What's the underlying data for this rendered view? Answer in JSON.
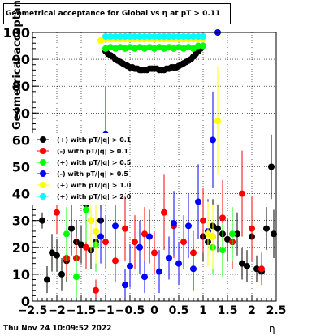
{
  "chart_data": {
    "type": "scatter",
    "title": "Geometrical acceptance for Global vs  η at pT > 0.11",
    "xlabel": "η",
    "ylabel": "Geometrical acceptance (%)",
    "xlim": [
      -2.5,
      2.5
    ],
    "ylim": [
      0,
      100
    ],
    "x_ticks": [
      "−2.5",
      "−2",
      "−1.5",
      "−1",
      "−0.5",
      "0",
      "0.5",
      "1",
      "1.5",
      "2",
      "2.5"
    ],
    "y_ticks": [
      "0",
      "10",
      "20",
      "30",
      "40",
      "50",
      "60",
      "70",
      "80",
      "90",
      "100"
    ],
    "grid": true,
    "legend_position": "center-left",
    "timestamp": "Thu Nov 24 10:09:52 2022",
    "series": [
      {
        "name": "(+) with pT/|q| > 0.1",
        "color": "#000000",
        "x": [
          -2.3,
          -2.2,
          -2.1,
          -2.0,
          -1.9,
          -1.8,
          -1.7,
          -1.6,
          -1.5,
          -1.4,
          -1.3,
          -1.2,
          -1.1,
          -1.0,
          -0.95,
          -0.9,
          -0.85,
          -0.8,
          -0.75,
          -0.7,
          -0.65,
          -0.6,
          -0.55,
          -0.5,
          -0.45,
          -0.4,
          -0.35,
          -0.3,
          -0.25,
          -0.2,
          -0.15,
          -0.1,
          -0.05,
          0.0,
          0.05,
          0.1,
          0.15,
          0.2,
          0.25,
          0.3,
          0.35,
          0.4,
          0.45,
          0.5,
          0.55,
          0.6,
          0.65,
          0.7,
          0.75,
          0.8,
          0.85,
          0.9,
          0.95,
          1.0,
          1.1,
          1.2,
          1.3,
          1.4,
          1.5,
          1.6,
          1.7,
          1.8,
          1.9,
          2.0,
          2.1,
          2.2,
          2.3,
          2.4,
          2.45
        ],
        "y": [
          30,
          8,
          18,
          17,
          10,
          15,
          27,
          22,
          21,
          36,
          19,
          22,
          30,
          93,
          92,
          91.5,
          91,
          90,
          89.5,
          89,
          88.5,
          88,
          87.5,
          87,
          87,
          86.5,
          86.5,
          86,
          86,
          86,
          86,
          86.5,
          86.5,
          86.5,
          86.5,
          86,
          86,
          86,
          86.5,
          86.5,
          87,
          87,
          87,
          87.5,
          88,
          88.5,
          89,
          89.5,
          90,
          91,
          92,
          93,
          94,
          24,
          22,
          28,
          27,
          25,
          23,
          22,
          25,
          14,
          13,
          24,
          12,
          11,
          27,
          50,
          25
        ],
        "err": [
          3,
          5,
          7,
          6,
          6,
          8,
          10,
          8,
          7,
          9,
          7,
          8,
          9,
          0.5,
          0.5,
          0.5,
          0.5,
          0.5,
          0.5,
          0.5,
          0.5,
          0.5,
          0.5,
          0.5,
          0.5,
          0.5,
          0.5,
          0.5,
          0.5,
          0.5,
          0.5,
          0.5,
          0.5,
          0.5,
          0.5,
          0.5,
          0.5,
          0.5,
          0.5,
          0.5,
          0.5,
          0.5,
          0.5,
          0.5,
          0.5,
          0.5,
          0.5,
          0.5,
          0.5,
          0.5,
          0.5,
          0.5,
          0.5,
          9,
          8,
          10,
          9,
          8,
          8,
          7,
          8,
          6,
          6,
          8,
          5,
          5,
          8,
          12,
          9
        ]
      },
      {
        "name": "(-) with pT/|q| > 0.1",
        "color": "#ff0000",
        "x": [
          -2.0,
          -1.8,
          -1.6,
          -1.4,
          -1.2,
          -1.0,
          -0.8,
          -0.6,
          -0.4,
          -0.2,
          0.0,
          0.2,
          0.4,
          0.6,
          0.8,
          1.0,
          1.2,
          1.4,
          1.6,
          1.8,
          2.0,
          2.2
        ],
        "y": [
          33,
          16,
          16,
          20,
          4,
          22,
          15,
          27,
          22,
          25,
          18,
          33,
          28,
          22,
          18,
          30,
          24,
          31,
          22,
          40,
          27,
          12
        ],
        "err": [
          8,
          7,
          8,
          8,
          4,
          10,
          8,
          12,
          10,
          10,
          8,
          14,
          12,
          10,
          8,
          12,
          10,
          14,
          10,
          16,
          12,
          6
        ]
      },
      {
        "name": "(+) with pT/|q| > 0.5",
        "color": "#00ff00",
        "x": [
          -1.8,
          -1.6,
          -1.4,
          -1.2,
          -1.0,
          -0.9,
          -0.8,
          -0.7,
          -0.6,
          -0.5,
          -0.4,
          -0.3,
          -0.2,
          -0.1,
          0.0,
          0.1,
          0.2,
          0.3,
          0.4,
          0.5,
          0.6,
          0.7,
          0.8,
          0.9,
          1.0,
          1.2,
          1.4,
          1.6
        ],
        "y": [
          25,
          9,
          34,
          21,
          94,
          94.5,
          94,
          94.5,
          94,
          94.5,
          94,
          94.5,
          94,
          94.5,
          94,
          94.5,
          94,
          94.5,
          94,
          94.5,
          94,
          94.5,
          94,
          95,
          95,
          20,
          19,
          25
        ],
        "err": [
          10,
          8,
          12,
          10,
          0.5,
          0.5,
          0.5,
          0.5,
          0.5,
          0.5,
          0.5,
          0.5,
          0.5,
          0.5,
          0.5,
          0.5,
          0.5,
          0.5,
          0.5,
          0.5,
          0.5,
          0.5,
          0.5,
          0.5,
          0.5,
          10,
          10,
          10
        ]
      },
      {
        "name": "(-) with pT/|q| > 0.5",
        "color": "#0000ff",
        "x": [
          -1.3,
          -1.1,
          -1.0,
          -0.8,
          -0.6,
          -0.5,
          -0.3,
          -0.2,
          -0.1,
          0.1,
          0.3,
          0.4,
          0.5,
          0.7,
          0.8,
          0.9,
          1.1,
          1.2,
          1.3
        ],
        "y": [
          30,
          24,
          62,
          28,
          6,
          13,
          20,
          9,
          24,
          11,
          16,
          29,
          14,
          28,
          12,
          37,
          26,
          60,
          100
        ],
        "err": [
          12,
          10,
          18,
          12,
          6,
          8,
          10,
          6,
          10,
          8,
          8,
          12,
          8,
          12,
          8,
          14,
          12,
          18,
          0.5
        ]
      },
      {
        "name": "(+) with pT/|q| > 1.0",
        "color": "#ffff00",
        "x": [
          -1.3,
          -1.2,
          -1.1,
          -1.0,
          -0.9,
          -0.8,
          -0.7,
          -0.6,
          -0.5,
          -0.4,
          -0.3,
          -0.2,
          -0.1,
          0.0,
          0.1,
          0.2,
          0.3,
          0.4,
          0.5,
          0.6,
          0.7,
          0.8,
          0.9,
          1.0,
          1.1,
          1.2,
          1.3
        ],
        "y": [
          30,
          26,
          97,
          97.5,
          97.5,
          97.5,
          97.5,
          97.5,
          97.5,
          97.5,
          97.5,
          97.5,
          97.5,
          97.5,
          97.5,
          97.5,
          97.5,
          97.5,
          97.5,
          97.5,
          97.5,
          97.5,
          97.5,
          97.5,
          25,
          24,
          67
        ],
        "err": [
          12,
          12,
          0.5,
          0.5,
          0.5,
          0.5,
          0.5,
          0.5,
          0.5,
          0.5,
          0.5,
          0.5,
          0.5,
          0.5,
          0.5,
          0.5,
          0.5,
          0.5,
          0.5,
          0.5,
          0.5,
          0.5,
          0.5,
          0.5,
          12,
          12,
          20
        ]
      },
      {
        "name": "(+) with pT/|q| > 2.0",
        "color": "#00ffff",
        "x": [
          -1.0,
          -0.9,
          -0.8,
          -0.7,
          -0.6,
          -0.5,
          -0.4,
          -0.3,
          -0.2,
          -0.1,
          0.0,
          0.1,
          0.2,
          0.3,
          0.4,
          0.5,
          0.6,
          0.7,
          0.8,
          0.9,
          1.0
        ],
        "y": [
          98.5,
          98.5,
          98.5,
          98.5,
          98.5,
          98.5,
          98.5,
          98.5,
          98.5,
          98.5,
          98.5,
          98.5,
          98.5,
          98.5,
          98.5,
          98.5,
          98.5,
          98.5,
          98.5,
          98.5,
          98.5
        ],
        "err": [
          0.5,
          0.5,
          0.5,
          0.5,
          0.5,
          0.5,
          0.5,
          0.5,
          0.5,
          0.5,
          0.5,
          0.5,
          0.5,
          0.5,
          0.5,
          0.5,
          0.5,
          0.5,
          0.5,
          0.5,
          0.5
        ]
      }
    ]
  }
}
